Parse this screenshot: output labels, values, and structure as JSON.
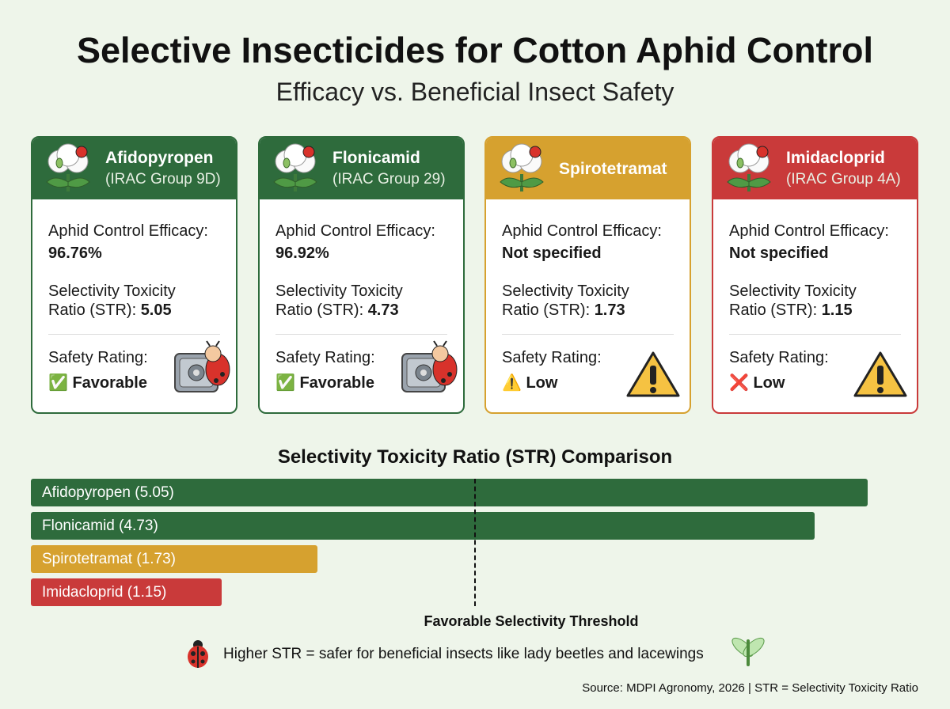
{
  "header": {
    "title": "Selective Insecticides for Cotton Aphid Control",
    "subtitle": "Efficacy vs. Beneficial Insect Safety"
  },
  "cards": [
    {
      "name": "Afidopyropen",
      "group": "(IRAC Group 9D)",
      "color": "#2e6b3c",
      "efficacy_label": "Aphid Control Efficacy:",
      "efficacy": "96.76%",
      "str_label": "Selectivity Toxicity Ratio (STR):",
      "str": 5.05,
      "safety_label": "Safety Rating:",
      "safety": "✅ Favorable",
      "badge": "safe"
    },
    {
      "name": "Flonicamid",
      "group": "(IRAC Group 29)",
      "color": "#2e6b3c",
      "efficacy_label": "Aphid Control Efficacy:",
      "efficacy": "96.92%",
      "str_label": "Selectivity Toxicity Ratio (STR):",
      "str": 4.73,
      "safety_label": "Safety Rating:",
      "safety": "✅ Favorable",
      "badge": "safe"
    },
    {
      "name": "Spirotetramat",
      "color": "#d6a12f",
      "efficacy_label": "Aphid Control Efficacy:",
      "efficacy": "Not specified",
      "str_label": "Selectivity Toxicity Ratio (STR):",
      "str": 1.73,
      "safety_label": "Safety Rating:",
      "safety": "⚠️ Low",
      "badge": "warning"
    },
    {
      "name": "Imidacloprid",
      "group": "(IRAC Group 4A)",
      "color": "#c93a3a",
      "efficacy_label": "Aphid Control Efficacy:",
      "efficacy": "Not specified",
      "str_label": "Selectivity Toxicity Ratio (STR):",
      "str": 1.15,
      "safety_label": "Safety Rating:",
      "safety": "❌ Low",
      "badge": "warning"
    }
  ],
  "chart_data": {
    "type": "bar",
    "orientation": "horizontal",
    "title": "Selectivity Toxicity Ratio (STR) Comparison",
    "values": [
      5.05,
      4.73,
      1.73,
      1.15
    ],
    "value_labels": [
      "Afidopyropen (5.05)",
      "Flonicamid (4.73)",
      "Spirotetramat (1.73)",
      "Imidacloprid (1.15)"
    ],
    "colors": [
      "#2e6b3c",
      "#2e6b3c",
      "#d6a12f",
      "#c93a3a"
    ],
    "xlim": [
      0,
      5.05
    ],
    "threshold": 2.68,
    "threshold_label": "Favorable Selectivity Threshold"
  },
  "note": "Higher STR = safer for beneficial insects like lady beetles and lacewings",
  "source": "Source: MDPI Agronomy, 2026 | STR = Selectivity Toxicity Ratio"
}
